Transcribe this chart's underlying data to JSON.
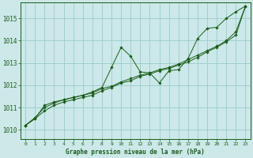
{
  "title": "Graphe pression niveau de la mer (hPa)",
  "bg_color": "#cce8e8",
  "grid_color": "#99cccc",
  "line_color": "#1a5c1a",
  "marker_color": "#1a5c1a",
  "xlim": [
    -0.5,
    23.5
  ],
  "ylim": [
    1009.6,
    1015.7
  ],
  "yticks": [
    1010,
    1011,
    1012,
    1013,
    1014,
    1015
  ],
  "xticks": [
    0,
    1,
    2,
    3,
    4,
    5,
    6,
    7,
    8,
    9,
    10,
    11,
    12,
    13,
    14,
    15,
    16,
    17,
    18,
    19,
    20,
    21,
    22,
    23
  ],
  "series1": [
    1010.2,
    1010.5,
    1011.1,
    1011.25,
    1011.35,
    1011.45,
    1011.55,
    1011.7,
    1011.9,
    1012.8,
    1013.7,
    1013.3,
    1012.6,
    1012.55,
    1012.1,
    1012.65,
    1012.7,
    1013.2,
    1014.1,
    1014.55,
    1014.6,
    1015.0,
    1015.3,
    1015.55
  ],
  "series2": [
    1010.2,
    1010.5,
    1010.85,
    1011.1,
    1011.25,
    1011.35,
    1011.45,
    1011.55,
    1011.75,
    1011.9,
    1012.1,
    1012.2,
    1012.4,
    1012.5,
    1012.65,
    1012.75,
    1012.9,
    1013.05,
    1013.25,
    1013.5,
    1013.7,
    1013.95,
    1014.25,
    1015.55
  ],
  "series3": [
    1010.2,
    1010.55,
    1011.0,
    1011.2,
    1011.35,
    1011.45,
    1011.55,
    1011.65,
    1011.85,
    1011.95,
    1012.15,
    1012.3,
    1012.45,
    1012.55,
    1012.7,
    1012.8,
    1012.95,
    1013.15,
    1013.35,
    1013.55,
    1013.75,
    1014.0,
    1014.4,
    1015.55
  ]
}
